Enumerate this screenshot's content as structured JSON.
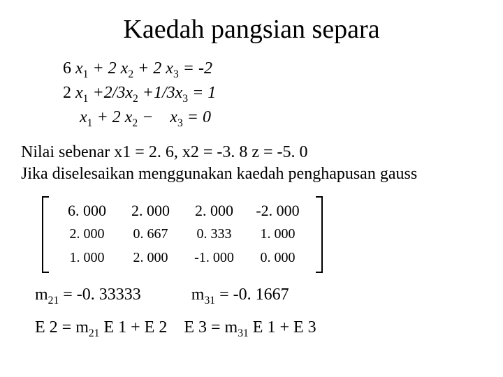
{
  "title": "Kaedah pangsian separa",
  "equations": {
    "line1": {
      "c1": "6",
      "body": " x",
      "s1": "1",
      "plus1": " + 2 x",
      "s2": "2",
      "plus2": " + 2 x",
      "s3": "3",
      "eq": " =  -2"
    },
    "line2": {
      "c1": "2",
      "body": "  x",
      "s1": "1",
      "plus1": " +2/3x",
      "s2": "2",
      "plus2": " +1/3x",
      "s3": "3",
      "eq": " = 1"
    },
    "line3": {
      "body": "    x",
      "s1": "1",
      "plus1": " + 2  x",
      "s2": "2",
      "minus": " −    x",
      "s3": "3",
      "eq": " = 0"
    }
  },
  "desc": {
    "l1": "Nilai sebenar x1 = 2. 6, x2 = -3. 8 z = -5. 0",
    "l2": "Jika diselesaikan menggunakan kaedah penghapusan gauss"
  },
  "matrix": {
    "rows": [
      [
        "6. 000",
        "2. 000",
        "2. 000",
        "-2. 000"
      ],
      [
        "2. 000",
        "0. 667",
        "0. 333",
        "1. 000"
      ],
      [
        "1. 000",
        "2. 000",
        "-1. 000",
        "0. 000"
      ]
    ],
    "row_sizes": [
      "22px",
      "20px",
      "20px"
    ]
  },
  "mvals": {
    "m21_label": "m",
    "m21_sub": "21",
    "m21_val": " = -0. 33333",
    "m31_label": "m",
    "m31_sub": "31",
    "m31_val": " = -0. 1667"
  },
  "erow": {
    "e2lhs": "E 2 = m",
    "e2sub": "21",
    "e2rhs": " E 1 + E 2",
    "sep": "  ",
    "e3lhs": "E 3 = m",
    "e3sub": "31",
    "e3rhs": " E 1 + E 3"
  },
  "colors": {
    "bg": "#ffffff",
    "text": "#000000"
  }
}
